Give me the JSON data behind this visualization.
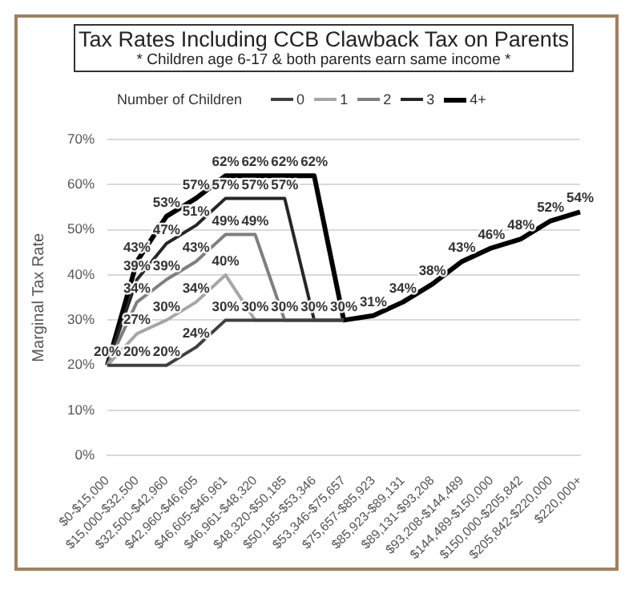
{
  "chart_data": {
    "type": "line",
    "title": "Tax Rates Including CCB Clawback Tax on Parents",
    "subtitle": "* Children age 6-17 & both parents earn same income *",
    "ylabel": "Marginal Tax Rate",
    "legend_title": "Number of Children",
    "legend": "top",
    "categories": [
      "$0-$15,000",
      "$15,000-$32,500",
      "$32,500-$42,960",
      "$42,960-$46,605",
      "$46,605-$46,961",
      "$46,961-$48,320",
      "$48,320-$50,185",
      "$50,185-$53,346",
      "$53,346-$75,657",
      "$75,657-$85,923",
      "$85,923-$89,131",
      "$89,131-$93,208",
      "$93,208-$144,489",
      "$144,489-$150,000",
      "$150,000-$205,842",
      "$205,842-$220,000",
      "$220,000+"
    ],
    "ylim": [
      0,
      70
    ],
    "yticks": [
      {
        "value": 0,
        "label": "0%"
      },
      {
        "value": 10,
        "label": "10%"
      },
      {
        "value": 20,
        "label": "20%"
      },
      {
        "value": 30,
        "label": "30%"
      },
      {
        "value": 40,
        "label": "40%"
      },
      {
        "value": 50,
        "label": "50%"
      },
      {
        "value": 60,
        "label": "60%"
      },
      {
        "value": 70,
        "label": "70%"
      }
    ],
    "grid": "y",
    "marker": "none",
    "series": [
      {
        "name": "0",
        "color": "#404040",
        "values": [
          20,
          20,
          20,
          24,
          30,
          30,
          30,
          30,
          30,
          null,
          null,
          null,
          null,
          null,
          null,
          null,
          null
        ],
        "value_labels": [
          "20%",
          "20%",
          "20%",
          "24%",
          "30%",
          null,
          null,
          null,
          null,
          null,
          null,
          null,
          null,
          null,
          null,
          null,
          null
        ]
      },
      {
        "name": "1",
        "color": "#a6a6a6",
        "values": [
          20,
          27,
          30,
          34,
          40,
          30,
          30,
          30,
          30,
          null,
          null,
          null,
          null,
          null,
          null,
          null,
          null
        ],
        "value_labels": [
          null,
          "27%",
          "30%",
          "34%",
          "40%",
          "30%",
          null,
          null,
          null,
          null,
          null,
          null,
          null,
          null,
          null,
          null,
          null
        ]
      },
      {
        "name": "2",
        "color": "#7f7f7f",
        "values": [
          20,
          34,
          39,
          43,
          49,
          49,
          30,
          30,
          30,
          null,
          null,
          null,
          null,
          null,
          null,
          null,
          null
        ],
        "value_labels": [
          null,
          "34%",
          "39%",
          "43%",
          "49%",
          "49%",
          "30%",
          null,
          null,
          null,
          null,
          null,
          null,
          null,
          null,
          null,
          null
        ]
      },
      {
        "name": "3",
        "color": "#262626",
        "values": [
          20,
          39,
          47,
          51,
          57,
          57,
          57,
          30,
          30,
          null,
          null,
          null,
          null,
          null,
          null,
          null,
          null
        ],
        "value_labels": [
          null,
          "39%",
          "47%",
          "51%",
          "57%",
          "57%",
          "57%",
          "30%",
          null,
          null,
          null,
          null,
          null,
          null,
          null,
          null,
          null
        ]
      },
      {
        "name": "4+",
        "color": "#000000",
        "values": [
          20,
          43,
          53,
          57,
          62,
          62,
          62,
          62,
          30,
          31,
          34,
          38,
          43,
          46,
          48,
          52,
          54
        ],
        "value_labels": [
          null,
          "43%",
          "53%",
          "57%",
          "62%",
          "62%",
          "62%",
          "62%",
          "30%",
          "31%",
          "34%",
          "38%",
          "43%",
          "46%",
          "48%",
          "52%",
          "54%"
        ]
      }
    ]
  }
}
